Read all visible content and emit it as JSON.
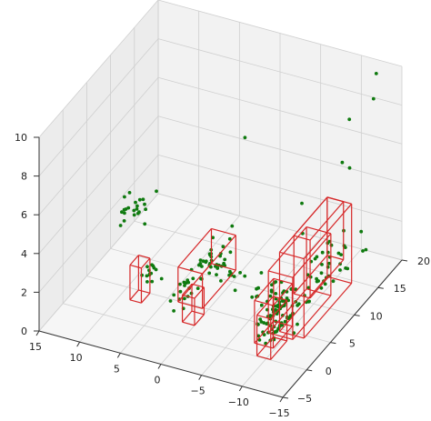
{
  "chart_data": {
    "type": "scatter",
    "dimensions": 3,
    "title": "",
    "xlabel": "",
    "ylabel": "",
    "zlabel": "",
    "xlim": [
      -15,
      15
    ],
    "ylim": [
      -5,
      20
    ],
    "zlim": [
      0,
      10
    ],
    "x_ticks": [
      "15",
      "10",
      "5",
      "0",
      "−5",
      "−10",
      "−15"
    ],
    "y_ticks": [
      "−5",
      "0",
      "5",
      "10",
      "15",
      "20"
    ],
    "z_ticks": [
      "0",
      "2",
      "4",
      "6",
      "8",
      "10"
    ],
    "grid": true,
    "point_color": "#0f7a0f",
    "box_color": "#d62728",
    "clusters": [
      {
        "center": [
          10.2,
          7.5,
          3.4
        ],
        "spread": [
          1.6,
          2.8,
          0.8
        ],
        "count": 22
      },
      {
        "center": [
          6.3,
          3.7,
          1.5
        ],
        "spread": [
          0.8,
          1.2,
          0.6
        ],
        "count": 14
      },
      {
        "center": [
          0.6,
          4.8,
          1.9
        ],
        "spread": [
          1.0,
          5.5,
          0.8
        ],
        "count": 45
      },
      {
        "center": [
          -2.8,
          7.3,
          1.2
        ],
        "spread": [
          4.5,
          1.8,
          0.3
        ],
        "count": 30
      },
      {
        "center": [
          -9.8,
          2.4,
          1.6
        ],
        "spread": [
          1.0,
          2.8,
          0.9
        ],
        "count": 70
      },
      {
        "center": [
          -11.7,
          7.0,
          2.0
        ],
        "spread": [
          1.0,
          6.5,
          1.1
        ],
        "count": 50
      }
    ],
    "isolated_points": [
      [
        -12.8,
        17.8,
        8.7
      ],
      [
        -12.9,
        18.2,
        9.9
      ],
      [
        -10.0,
        17.5,
        7.4
      ],
      [
        -11.2,
        15.5,
        5.6
      ],
      [
        -10.0,
        16.0,
        5.6
      ],
      [
        1.5,
        15.2,
        5.8
      ],
      [
        -6.5,
        13.5,
        3.8
      ],
      [
        -7.0,
        12.8,
        2.5
      ],
      [
        1.5,
        12.5,
        2.0
      ],
      [
        -13.0,
        9.0,
        1.8
      ],
      [
        -13.0,
        12.0,
        1.6
      ],
      [
        -14.0,
        13.5,
        2.2
      ],
      [
        -12.5,
        11.5,
        2.4
      ],
      [
        -13.5,
        14.0,
        3.0
      ],
      [
        -14.2,
        13.8,
        2.2
      ]
    ],
    "boxes": [
      {
        "min": [
          6.4,
          1.8,
          0.5
        ],
        "max": [
          7.8,
          3.6,
          2.3
        ]
      },
      {
        "min": [
          -0.5,
          1.2,
          0.3
        ],
        "max": [
          1.0,
          3.2,
          1.7
        ]
      },
      {
        "min": [
          -1.0,
          2.0,
          1.0
        ],
        "max": [
          2.0,
          9.0,
          2.8
        ]
      },
      {
        "min": [
          -10.3,
          1.0,
          0.3
        ],
        "max": [
          -8.0,
          5.0,
          2.5
        ]
      },
      {
        "min": [
          -10.7,
          -0.2,
          0.1
        ],
        "max": [
          -9.0,
          3.2,
          2.2
        ]
      },
      {
        "min": [
          -13.0,
          0.5,
          1.2
        ],
        "max": [
          -10.0,
          8.5,
          4.4
        ]
      },
      {
        "min": [
          -13.5,
          2.0,
          0.9
        ],
        "max": [
          -10.5,
          12.0,
          5.0
        ]
      },
      {
        "min": [
          -12.5,
          5.0,
          2.0
        ],
        "max": [
          -10.5,
          12.0,
          5.0
        ]
      }
    ]
  }
}
